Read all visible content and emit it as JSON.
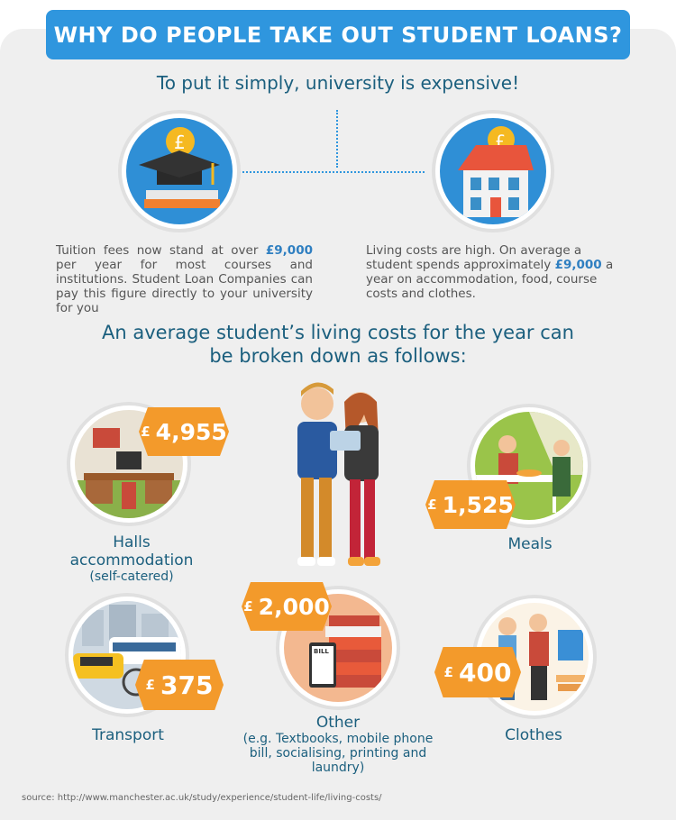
{
  "title": "WHY DO PEOPLE TAKE OUT STUDENT LOANS?",
  "subtitle": "To put it simply, university is expensive!",
  "tuition": {
    "text_before": "Tuition fees now stand at over ",
    "amount": "£9,000",
    "text_after": " per year for most courses and institutions. Student Loan Companies can pay this figure directly to your university for you"
  },
  "living": {
    "text_before": "Living costs are high. On average a student spends approximately ",
    "amount": "£9,000",
    "text_after": " a year on accommodation, food, course costs and clothes."
  },
  "breakdown_heading_1": "An average student’s living costs for the year can",
  "breakdown_heading_2": "be broken down as follows:",
  "costs": {
    "halls": {
      "currency": "£",
      "value": "4,955",
      "label1": "Halls",
      "label2": "accommodation",
      "note": "(self-catered)"
    },
    "meals": {
      "currency": "£",
      "value": "1,525",
      "label": "Meals"
    },
    "transport": {
      "currency": "£",
      "value": "375",
      "label": "Transport"
    },
    "other": {
      "currency": "£",
      "value": "2,000",
      "label": "Other",
      "note1": "(e.g. Textbooks, mobile phone",
      "note2": "bill, socialising, printing and",
      "note3": "laundry)"
    },
    "clothes": {
      "currency": "£",
      "value": "400",
      "label": "Clothes"
    }
  },
  "bill_text": "BILL",
  "source": "source:  http://www.manchester.ac.uk/study/experience/student-life/living-costs/",
  "colors": {
    "accent": "#2f96de",
    "orange": "#f39a2b",
    "heading": "#1b5f7e"
  }
}
